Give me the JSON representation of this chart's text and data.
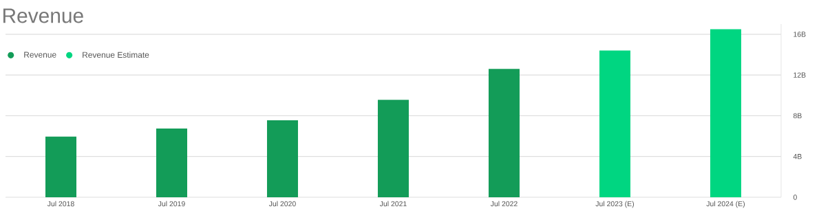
{
  "chart_data": {
    "type": "bar",
    "title": "Revenue",
    "categories": [
      "Jul 2018",
      "Jul 2019",
      "Jul 2020",
      "Jul 2021",
      "Jul 2022",
      "Jul 2023 (E)",
      "Jul 2024 (E)"
    ],
    "series": [
      {
        "name": "Revenue",
        "color": "#139c58",
        "values": [
          5.96,
          6.74,
          7.56,
          9.56,
          12.6,
          null,
          null
        ]
      },
      {
        "name": "Revenue Estimate",
        "color": "#00d681",
        "values": [
          null,
          null,
          null,
          null,
          null,
          14.4,
          16.5
        ]
      }
    ],
    "ylim": [
      0,
      17
    ],
    "yticks": [
      0,
      {
        "value": 4,
        "label": "4B"
      },
      {
        "value": 8,
        "label": "8B"
      },
      {
        "value": 12,
        "label": "12B"
      },
      {
        "value": 16,
        "label": "16B"
      }
    ],
    "grid": "y",
    "legend": "top left"
  }
}
